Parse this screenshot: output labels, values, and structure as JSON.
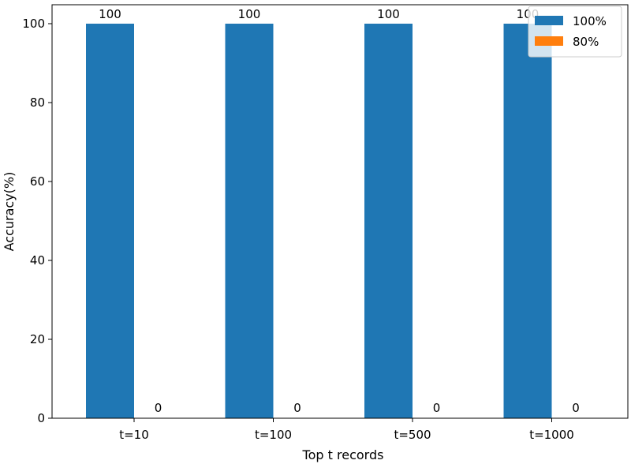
{
  "chart_data": {
    "type": "bar",
    "categories": [
      "t=10",
      "t=100",
      "t=500",
      "t=1000"
    ],
    "series": [
      {
        "name": "100%",
        "values": [
          100,
          100,
          100,
          100
        ],
        "color": "#1f77b4"
      },
      {
        "name": "80%",
        "values": [
          0,
          0,
          0,
          0
        ],
        "color": "#ff7f0e"
      }
    ],
    "xlabel": "Top t records",
    "ylabel": "Accuracy(%)",
    "ylim": [
      0,
      100
    ],
    "yticks": [
      0,
      20,
      40,
      60,
      80,
      100
    ],
    "grid": false,
    "legend_position": "top-right",
    "data_labels": true
  }
}
